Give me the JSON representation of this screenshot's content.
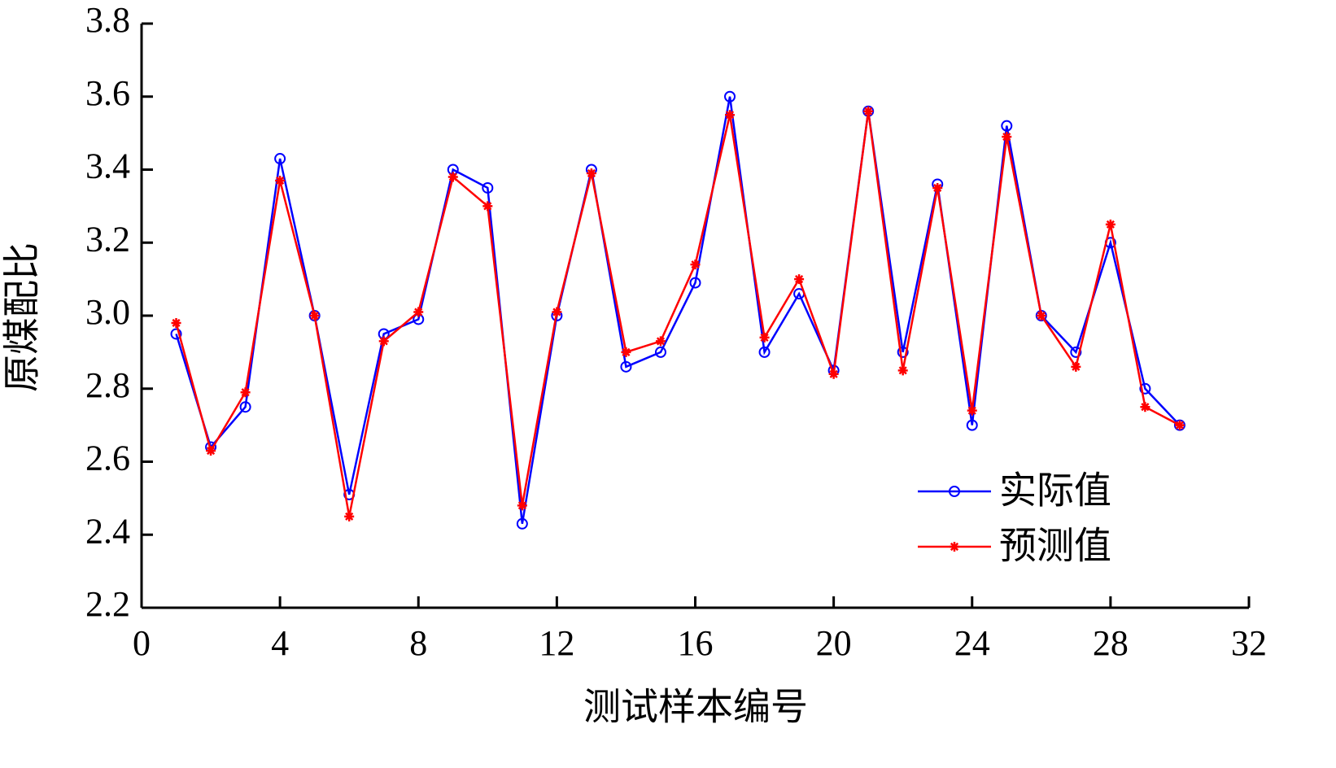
{
  "chart_data": {
    "type": "line",
    "xlabel": "测试样本编号",
    "ylabel": "原煤配比",
    "x": [
      1,
      2,
      3,
      4,
      5,
      6,
      7,
      8,
      9,
      10,
      11,
      12,
      13,
      14,
      15,
      16,
      17,
      18,
      19,
      20,
      21,
      22,
      23,
      24,
      25,
      26,
      27,
      28,
      29,
      30
    ],
    "series": [
      {
        "name": "实际值",
        "color": "#0000ff",
        "marker": "circle",
        "values": [
          2.95,
          2.64,
          2.75,
          3.43,
          3.0,
          2.51,
          2.95,
          2.99,
          3.4,
          3.35,
          2.43,
          3.0,
          3.4,
          2.86,
          2.9,
          3.09,
          3.6,
          2.9,
          3.06,
          2.85,
          3.56,
          2.9,
          3.36,
          2.7,
          3.52,
          3.0,
          2.9,
          3.2,
          2.8,
          2.7
        ]
      },
      {
        "name": "预测值",
        "color": "#ff0000",
        "marker": "asterisk",
        "values": [
          2.98,
          2.63,
          2.79,
          3.37,
          3.0,
          2.45,
          2.93,
          3.01,
          3.38,
          3.3,
          2.48,
          3.01,
          3.39,
          2.9,
          2.93,
          3.14,
          3.55,
          2.94,
          3.1,
          2.84,
          3.56,
          2.85,
          3.35,
          2.74,
          3.49,
          3.0,
          2.86,
          3.25,
          2.75,
          2.7
        ]
      }
    ],
    "xlim": [
      0,
      32
    ],
    "xticks": [
      0,
      4,
      8,
      12,
      16,
      20,
      24,
      28,
      32
    ],
    "ylim": [
      2.2,
      3.8
    ],
    "yticks": [
      2.2,
      2.4,
      2.6,
      2.8,
      {
        "value": 3,
        "label": "3.0"
      },
      3.2,
      3.4,
      3.6,
      3.8
    ],
    "legend": "lower right"
  }
}
